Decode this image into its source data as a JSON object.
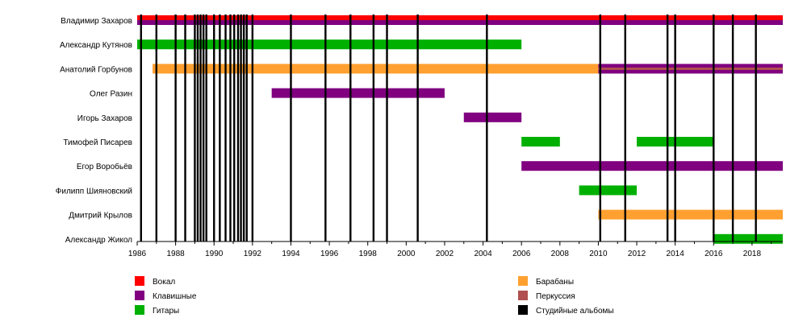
{
  "chart_data": {
    "type": "timeline",
    "xlim": [
      1986,
      2019.6
    ],
    "x_ticks": [
      "1986",
      "1988",
      "1990",
      "1992",
      "1994",
      "1996",
      "1998",
      "2000",
      "2002",
      "2004",
      "2006",
      "2008",
      "2010",
      "2012",
      "2014",
      "2016",
      "2018"
    ],
    "members": [
      "Владимир Захаров",
      "Александр Кутянов",
      "Анатолий Горбунов",
      "Олег Разин",
      "Игорь Захаров",
      "Тимофей Писарев",
      "Егор Воробьёв",
      "Филипп Шияновский",
      "Дмитрий Крылов",
      "Александр Жикол"
    ],
    "colors": {
      "vocals": "#ff0000",
      "keyboards": "#800080",
      "guitars": "#00b000",
      "drums": "#ffa030",
      "percussion": "#b05050",
      "albums": "#000000"
    },
    "bars": [
      {
        "member": 0,
        "role": "vocals",
        "start": 1986,
        "end": 2019.6,
        "part": "top"
      },
      {
        "member": 0,
        "role": "keyboards",
        "start": 1986,
        "end": 2019.6,
        "part": "bottom"
      },
      {
        "member": 1,
        "role": "guitars",
        "start": 1986,
        "end": 2006
      },
      {
        "member": 2,
        "role": "drums",
        "start": 1986.8,
        "end": 2010
      },
      {
        "member": 2,
        "role": "keyboards",
        "start": 2010,
        "end": 2019.6,
        "part": "outer"
      },
      {
        "member": 2,
        "role": "percussion",
        "start": 2010,
        "end": 2019.6,
        "part": "inner"
      },
      {
        "member": 3,
        "role": "keyboards",
        "start": 1993,
        "end": 2002
      },
      {
        "member": 4,
        "role": "keyboards",
        "start": 2003,
        "end": 2006
      },
      {
        "member": 5,
        "role": "guitars",
        "start": 2006,
        "end": 2008
      },
      {
        "member": 5,
        "role": "guitars",
        "start": 2012,
        "end": 2016
      },
      {
        "member": 6,
        "role": "keyboards",
        "start": 2006,
        "end": 2019.6
      },
      {
        "member": 7,
        "role": "guitars",
        "start": 2009,
        "end": 2012
      },
      {
        "member": 8,
        "role": "drums",
        "start": 2010,
        "end": 2019.6
      },
      {
        "member": 9,
        "role": "guitars",
        "start": 2016,
        "end": 2019.6
      }
    ],
    "album_years": [
      1986.2,
      1987,
      1988,
      1988.5,
      1989,
      1989.15,
      1989.3,
      1989.45,
      1989.6,
      1990,
      1990.3,
      1990.6,
      1990.85,
      1991.05,
      1991.25,
      1991.4,
      1991.55,
      1991.7,
      1992,
      1994,
      1995.8,
      1997.1,
      1998.3,
      1999,
      2000.6,
      2004.2,
      2010.1,
      2011.4,
      2013.6,
      2014,
      2016,
      2017,
      2018.2
    ],
    "legend": [
      {
        "label": "Вокал",
        "role": "vocals",
        "column": 0
      },
      {
        "label": "Клавишные",
        "role": "keyboards",
        "column": 0
      },
      {
        "label": "Гитары",
        "role": "guitars",
        "column": 0
      },
      {
        "label": "Барабаны",
        "role": "drums",
        "column": 1
      },
      {
        "label": "Перкуссия",
        "role": "percussion",
        "column": 1
      },
      {
        "label": "Студийные альбомы",
        "role": "albums",
        "column": 1
      }
    ]
  }
}
